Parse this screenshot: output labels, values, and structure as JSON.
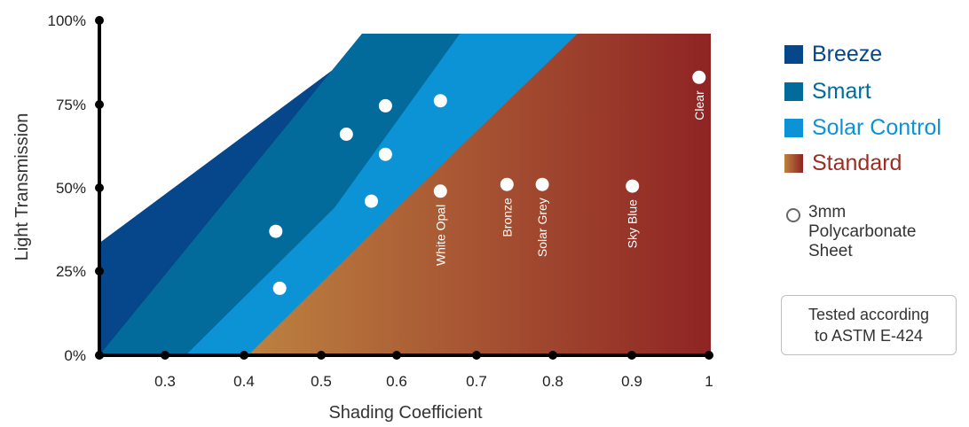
{
  "chart_data": {
    "type": "area",
    "xlabel": "Shading Coefficient",
    "ylabel": "Light Transmission",
    "xlim": [
      0.22,
      1.0
    ],
    "ylim": [
      0,
      100
    ],
    "x_ticks": [
      0.3,
      0.4,
      0.5,
      0.6,
      0.7,
      0.8,
      0.9,
      1.0
    ],
    "x_tick_labels": [
      "0.3",
      "0.4",
      "0.5",
      "0.6",
      "0.7",
      "0.8",
      "0.9",
      "1"
    ],
    "y_ticks": [
      0,
      25,
      50,
      75,
      100
    ],
    "y_tick_labels": [
      "0%",
      "25%",
      "50%",
      "75%",
      "100%"
    ],
    "x_dot_ticks": [
      0.3,
      0.4,
      0.5,
      0.6,
      0.7,
      0.8,
      0.9,
      1.0
    ],
    "regions": [
      {
        "name": "Breeze",
        "color": "#05478a",
        "polygon": [
          [
            0.22,
            0
          ],
          [
            0.22,
            35
          ],
          [
            0.58,
            100
          ],
          [
            1.0,
            100
          ],
          [
            1.0,
            0
          ]
        ]
      },
      {
        "name": "Smart",
        "color": "#036b9c",
        "polygon": [
          [
            0.22,
            0
          ],
          [
            0.555,
            100
          ],
          [
            1.0,
            100
          ],
          [
            1.0,
            0
          ]
        ]
      },
      {
        "name": "Solar Control",
        "color": "#0b93d6",
        "polygon": [
          [
            0.33,
            0
          ],
          [
            0.52,
            46
          ],
          [
            0.68,
            100
          ],
          [
            1.0,
            100
          ],
          [
            1.0,
            0
          ]
        ]
      },
      {
        "name": "Standard",
        "gradient": [
          "#bd8240",
          "#8f2424"
        ],
        "polygon": [
          [
            0.41,
            0
          ],
          [
            0.6,
            46
          ],
          [
            0.83,
            100
          ],
          [
            1.0,
            100
          ],
          [
            1.0,
            0
          ]
        ]
      }
    ],
    "points": [
      {
        "x": 0.445,
        "y": 37,
        "label": ""
      },
      {
        "x": 0.45,
        "y": 20,
        "label": ""
      },
      {
        "x": 0.535,
        "y": 66,
        "label": ""
      },
      {
        "x": 0.567,
        "y": 46,
        "label": ""
      },
      {
        "x": 0.585,
        "y": 74.5,
        "label": ""
      },
      {
        "x": 0.585,
        "y": 60,
        "label": ""
      },
      {
        "x": 0.655,
        "y": 76,
        "label": ""
      },
      {
        "x": 0.655,
        "y": 49,
        "label": "White Opal"
      },
      {
        "x": 0.74,
        "y": 51,
        "label": "Bronze"
      },
      {
        "x": 0.785,
        "y": 51,
        "label": "Solar Grey"
      },
      {
        "x": 0.9,
        "y": 50.5,
        "label": "Sky Blue"
      },
      {
        "x": 0.985,
        "y": 83,
        "label": "Clear"
      }
    ]
  },
  "legend": {
    "items": [
      {
        "label": "Breeze",
        "color": "#05478a",
        "text_color": "#05478a"
      },
      {
        "label": "Smart",
        "color": "#036b9c",
        "text_color": "#036b9c"
      },
      {
        "label": "Solar Control",
        "color": "#0b93d6",
        "text_color": "#0b93d6"
      },
      {
        "label": "Standard",
        "gradient": [
          "#bd8240",
          "#8f2424"
        ],
        "text_color": "#9a2e22"
      }
    ],
    "note": "3mm\nPolycarbonate\nSheet",
    "tested": "Tested according\nto ASTM E-424"
  }
}
